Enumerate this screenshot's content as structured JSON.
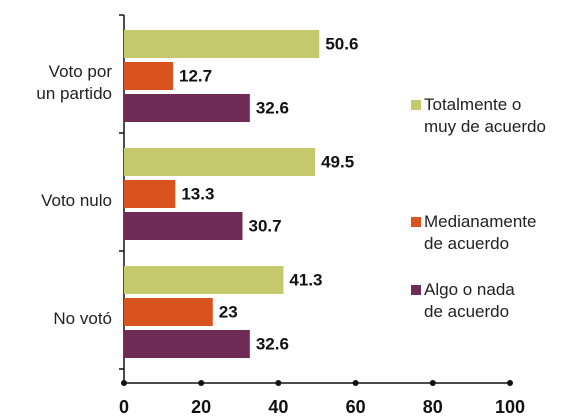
{
  "chart_data": {
    "type": "bar",
    "orientation": "horizontal",
    "categories": [
      "Voto por\nun partido",
      "Voto nulo",
      "No votó"
    ],
    "series": [
      {
        "name": "Totalmente o\nmuy de acuerdo",
        "color": "#c5c96b",
        "values": [
          50.6,
          49.5,
          41.3
        ]
      },
      {
        "name": "Medianamente\nde acuerdo",
        "color": "#d9531e",
        "values": [
          12.7,
          13.3,
          23
        ]
      },
      {
        "name": "Algo o nada\nde acuerdo",
        "color": "#6d2b56",
        "values": [
          32.6,
          30.7,
          32.6
        ]
      }
    ],
    "xlim": [
      0,
      100
    ],
    "xticks": [
      0,
      20,
      40,
      60,
      80,
      100
    ]
  }
}
